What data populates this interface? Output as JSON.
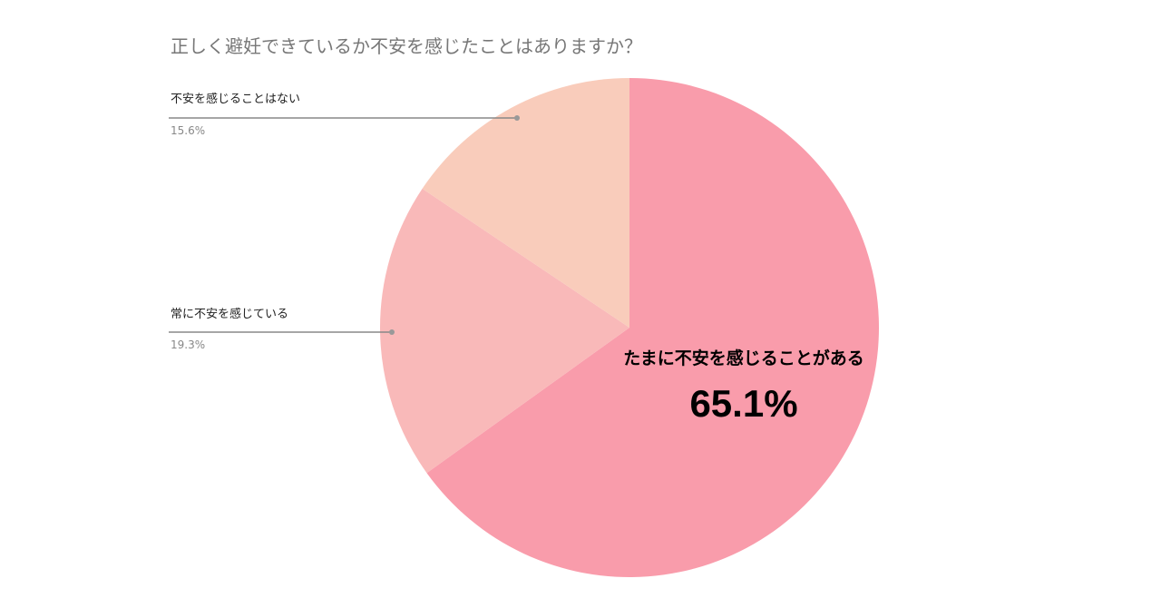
{
  "chart_data": {
    "type": "pie",
    "title": "正しく避妊できているか不安を感じたことはありますか？",
    "categories": [
      "たまに不安を感じることがある",
      "常に不安を感じている",
      "不安を感じることはない"
    ],
    "values": [
      65.1,
      19.3,
      15.6
    ],
    "value_labels": [
      "65.1%",
      "19.3%",
      "15.6%"
    ],
    "colors": [
      "#f99cab",
      "#f9b9b9",
      "#f9ccbb"
    ]
  }
}
